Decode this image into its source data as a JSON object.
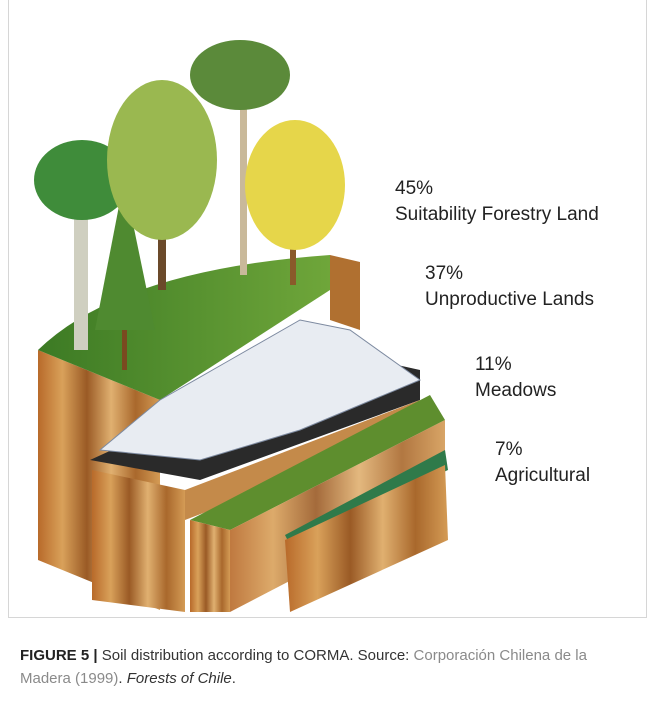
{
  "figure": {
    "segments": [
      {
        "percent": "45%",
        "label": "Suitability Forestry Land"
      },
      {
        "percent": "37%",
        "label": "Unproductive Lands"
      },
      {
        "percent": "11%",
        "label": "Meadows"
      },
      {
        "percent": "7%",
        "label": "Agricultural"
      }
    ],
    "caption": {
      "label": "FIGURE 5 |",
      "text": "Soil distribution according to CORMA. Source:",
      "source": "Corporación Chilena de la Madera (1999)",
      "sep": ".",
      "work": "Forests of Chile",
      "end": "."
    }
  }
}
